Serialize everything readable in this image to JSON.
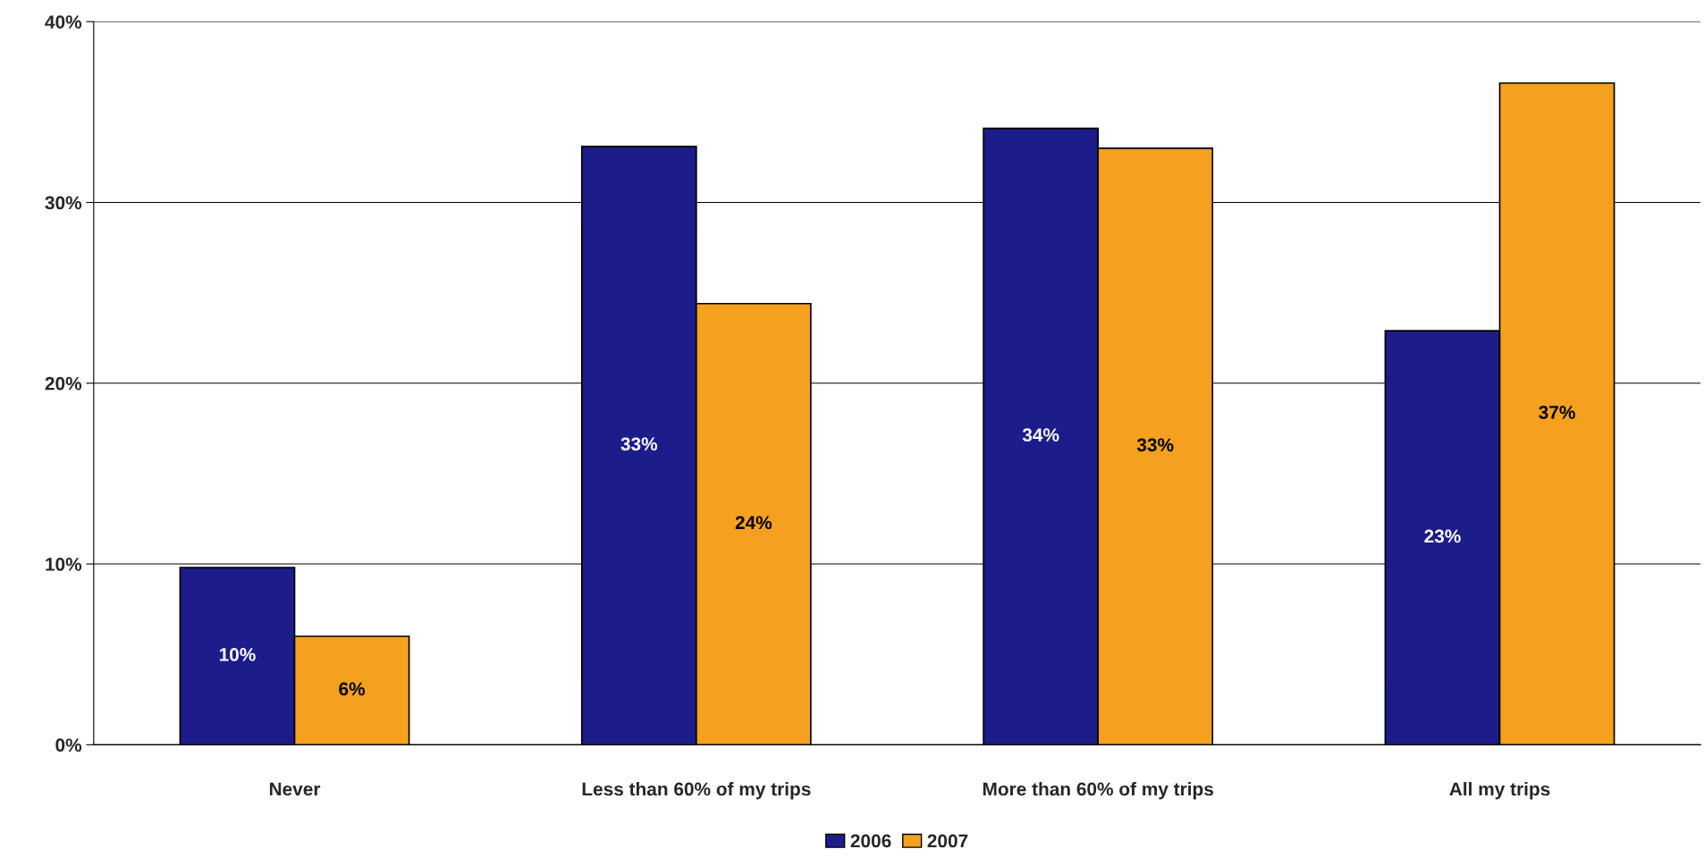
{
  "chart_data": {
    "type": "bar",
    "categories": [
      "Never",
      "Less than 60% of my trips",
      "More than 60% of my trips",
      "All my trips"
    ],
    "series": [
      {
        "name": "2006",
        "color": "#1c1c8a",
        "values": [
          9.8,
          33.1,
          34.1,
          22.9
        ],
        "value_labels": [
          "10%",
          "33%",
          "34%",
          "23%"
        ]
      },
      {
        "name": "2007",
        "color": "#f5a11f",
        "values": [
          6.0,
          24.4,
          33.0,
          36.6
        ],
        "value_labels": [
          "6%",
          "24%",
          "33%",
          "37%"
        ]
      }
    ],
    "ylim": [
      0,
      40
    ],
    "yticks": [
      {
        "value": 0,
        "label": "0%"
      },
      {
        "value": 10,
        "label": "10%"
      },
      {
        "value": 20,
        "label": "20%"
      },
      {
        "value": 30,
        "label": "30%"
      },
      {
        "value": 40,
        "label": "40%"
      }
    ],
    "grid": "y",
    "legend": "bottom"
  }
}
